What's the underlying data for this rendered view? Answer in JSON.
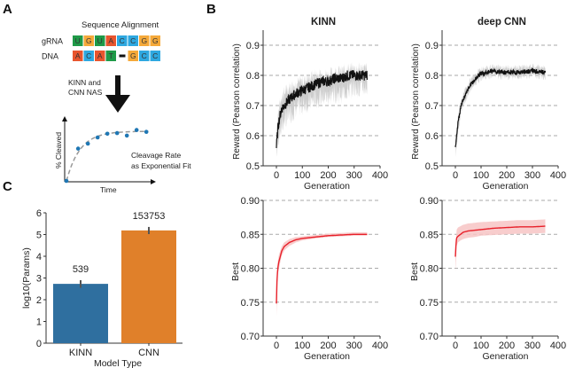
{
  "panels": {
    "A": {
      "label": "A",
      "alignment_title": "Sequence Alignment",
      "rows": [
        {
          "name": "gRNA",
          "cells": [
            "U",
            "G",
            "U",
            "A",
            "C",
            "C",
            "G",
            "G"
          ]
        },
        {
          "name": "DNA",
          "cells": [
            "A",
            "C",
            "A",
            "T",
            "-",
            "G",
            "C",
            "C"
          ]
        }
      ],
      "base_colors": {
        "A": "#e8552e",
        "C": "#2ea8e0",
        "G": "#f5a93a",
        "U": "#1f9a48",
        "T": "#1f9a48"
      },
      "arrow_label_line1": "KINN and",
      "arrow_label_line2": "CNN NAS",
      "fit_ylabel": "% Cleaved",
      "fit_xlabel": "Time",
      "fit_caption_line1": "Cleavage Rate",
      "fit_caption_line2": "as Exponential Fit",
      "fit_points": [
        [
          0,
          0
        ],
        [
          0.12,
          0.52
        ],
        [
          0.22,
          0.6
        ],
        [
          0.32,
          0.7
        ],
        [
          0.42,
          0.76
        ],
        [
          0.52,
          0.77
        ],
        [
          0.62,
          0.73
        ],
        [
          0.72,
          0.82
        ],
        [
          0.82,
          0.79
        ]
      ],
      "point_color": "#1f77b4"
    },
    "B": {
      "label": "B"
    },
    "C": {
      "label": "C"
    }
  },
  "chart_data": [
    {
      "id": "kinn-reward",
      "type": "line",
      "title": "KINN",
      "xlabel": "Generation",
      "ylabel": "Reward (Pearson correlation)",
      "xlim": [
        -50,
        400
      ],
      "ylim": [
        0.5,
        0.95
      ],
      "xticks": [
        0,
        100,
        200,
        300,
        400
      ],
      "yticks": [
        0.5,
        0.6,
        0.7,
        0.8,
        0.9
      ],
      "ytick_labels": [
        "0.5",
        "0.6",
        "0.7",
        "0.8",
        "0.9"
      ],
      "grid": "horizontal dashed",
      "series": [
        {
          "name": "mean",
          "color": "#111111",
          "band_color": "#c8c8c8",
          "x": [
            0,
            5,
            10,
            20,
            30,
            50,
            75,
            100,
            125,
            150,
            175,
            200,
            225,
            250,
            275,
            300,
            325,
            350
          ],
          "values": [
            0.56,
            0.62,
            0.65,
            0.69,
            0.7,
            0.72,
            0.74,
            0.75,
            0.76,
            0.77,
            0.78,
            0.78,
            0.79,
            0.79,
            0.8,
            0.8,
            0.8,
            0.8
          ],
          "band_low": [
            0.54,
            0.58,
            0.6,
            0.63,
            0.65,
            0.67,
            0.69,
            0.7,
            0.71,
            0.72,
            0.73,
            0.73,
            0.74,
            0.74,
            0.75,
            0.76,
            0.76,
            0.76
          ],
          "band_high": [
            0.58,
            0.66,
            0.69,
            0.73,
            0.74,
            0.76,
            0.77,
            0.78,
            0.79,
            0.8,
            0.8,
            0.8,
            0.81,
            0.81,
            0.82,
            0.82,
            0.82,
            0.82
          ]
        }
      ]
    },
    {
      "id": "cnn-reward",
      "type": "line",
      "title": "deep CNN",
      "xlabel": "Generation",
      "ylabel": "Reward (Pearson correlation)",
      "xlim": [
        -50,
        400
      ],
      "ylim": [
        0.5,
        0.95
      ],
      "xticks": [
        0,
        100,
        200,
        300,
        400
      ],
      "yticks": [
        0.5,
        0.6,
        0.7,
        0.8,
        0.9
      ],
      "ytick_labels": [
        "0.5",
        "0.6",
        "0.7",
        "0.8",
        "0.9"
      ],
      "grid": "horizontal dashed",
      "series": [
        {
          "name": "mean",
          "color": "#111111",
          "band_color": "#c8c8c8",
          "x": [
            0,
            5,
            10,
            20,
            30,
            40,
            50,
            60,
            75,
            90,
            100,
            125,
            150,
            175,
            200,
            250,
            300,
            350
          ],
          "values": [
            0.56,
            0.6,
            0.64,
            0.69,
            0.72,
            0.74,
            0.755,
            0.77,
            0.785,
            0.8,
            0.805,
            0.81,
            0.815,
            0.81,
            0.81,
            0.81,
            0.815,
            0.81
          ],
          "band_low": [
            0.54,
            0.57,
            0.61,
            0.67,
            0.7,
            0.72,
            0.74,
            0.755,
            0.77,
            0.785,
            0.79,
            0.795,
            0.8,
            0.795,
            0.795,
            0.795,
            0.8,
            0.795
          ],
          "band_high": [
            0.58,
            0.62,
            0.66,
            0.71,
            0.74,
            0.76,
            0.77,
            0.785,
            0.8,
            0.815,
            0.82,
            0.825,
            0.83,
            0.825,
            0.825,
            0.825,
            0.83,
            0.825
          ]
        }
      ]
    },
    {
      "id": "kinn-best",
      "type": "line",
      "title": "",
      "xlabel": "Generation",
      "ylabel": "Best",
      "xlim": [
        -50,
        400
      ],
      "ylim": [
        0.7,
        0.9
      ],
      "xticks": [
        0,
        100,
        200,
        300,
        400
      ],
      "yticks": [
        0.7,
        0.75,
        0.8,
        0.85,
        0.9
      ],
      "ytick_labels": [
        "0.70",
        "0.75",
        "0.80",
        "0.85",
        "0.90"
      ],
      "grid": "horizontal dashed",
      "series": [
        {
          "name": "best",
          "color": "#e8202a",
          "band_color": "#f7c4c4",
          "x": [
            0,
            2,
            5,
            10,
            20,
            30,
            50,
            75,
            100,
            150,
            200,
            250,
            300,
            350
          ],
          "values": [
            0.748,
            0.78,
            0.8,
            0.81,
            0.825,
            0.832,
            0.838,
            0.842,
            0.844,
            0.846,
            0.848,
            0.849,
            0.85,
            0.85
          ],
          "band_low": [
            0.73,
            0.76,
            0.79,
            0.8,
            0.818,
            0.826,
            0.833,
            0.838,
            0.841,
            0.844,
            0.846,
            0.847,
            0.848,
            0.848
          ],
          "band_high": [
            0.76,
            0.79,
            0.81,
            0.82,
            0.832,
            0.838,
            0.843,
            0.846,
            0.847,
            0.849,
            0.851,
            0.852,
            0.853,
            0.853
          ]
        }
      ]
    },
    {
      "id": "cnn-best",
      "type": "line",
      "title": "",
      "xlabel": "Generation",
      "ylabel": "Best",
      "xlim": [
        -50,
        400
      ],
      "ylim": [
        0.7,
        0.9
      ],
      "xticks": [
        0,
        100,
        200,
        300,
        400
      ],
      "yticks": [
        0.7,
        0.75,
        0.8,
        0.85,
        0.9
      ],
      "ytick_labels": [
        "0.70",
        "0.75",
        "0.80",
        "0.85",
        "0.90"
      ],
      "grid": "horizontal dashed",
      "series": [
        {
          "name": "best",
          "color": "#e8202a",
          "band_color": "#f7c4c4",
          "x": [
            0,
            3,
            5,
            10,
            20,
            30,
            50,
            75,
            100,
            150,
            200,
            250,
            300,
            350
          ],
          "values": [
            0.817,
            0.84,
            0.845,
            0.847,
            0.85,
            0.853,
            0.855,
            0.856,
            0.857,
            0.859,
            0.86,
            0.861,
            0.861,
            0.862
          ],
          "band_low": [
            0.795,
            0.825,
            0.833,
            0.838,
            0.841,
            0.843,
            0.845,
            0.846,
            0.848,
            0.849,
            0.85,
            0.851,
            0.851,
            0.852
          ],
          "band_high": [
            0.83,
            0.852,
            0.857,
            0.86,
            0.862,
            0.864,
            0.866,
            0.867,
            0.868,
            0.869,
            0.87,
            0.871,
            0.871,
            0.872
          ]
        }
      ]
    },
    {
      "id": "params-bar",
      "type": "bar",
      "title": "",
      "xlabel": "Model Type",
      "ylabel": "log10(Params)",
      "ylim": [
        0,
        6
      ],
      "yticks": [
        0,
        1,
        2,
        3,
        4,
        5,
        6
      ],
      "categories": [
        "KINN",
        "CNN"
      ],
      "values": [
        2.73,
        5.19
      ],
      "error_low": [
        2.55,
        5.02
      ],
      "error_high": [
        2.9,
        5.35
      ],
      "data_labels": [
        "539",
        "153753"
      ],
      "colors": [
        "#2f6f9f",
        "#e0802a"
      ]
    }
  ]
}
